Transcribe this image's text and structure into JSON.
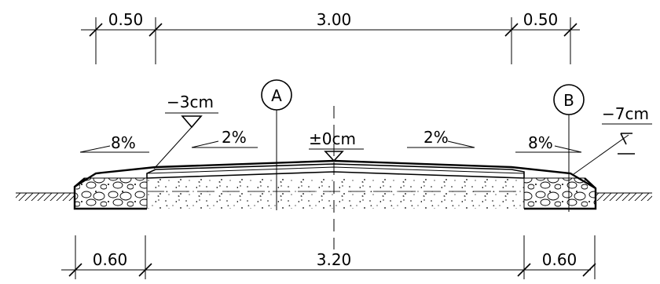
{
  "dimensions_top": {
    "left": "0.50",
    "center": "3.00",
    "right": "0.50"
  },
  "dimensions_bottom": {
    "left": "0.60",
    "center": "3.20",
    "right": "0.60"
  },
  "section_marks": {
    "a": "A",
    "b": "B"
  },
  "levels": {
    "left": "−3cm",
    "center": "±0cm",
    "right": "−7cm"
  },
  "slopes": {
    "outer_left": "8%",
    "inner_left": "2%",
    "inner_right": "2%",
    "outer_right": "8%"
  }
}
